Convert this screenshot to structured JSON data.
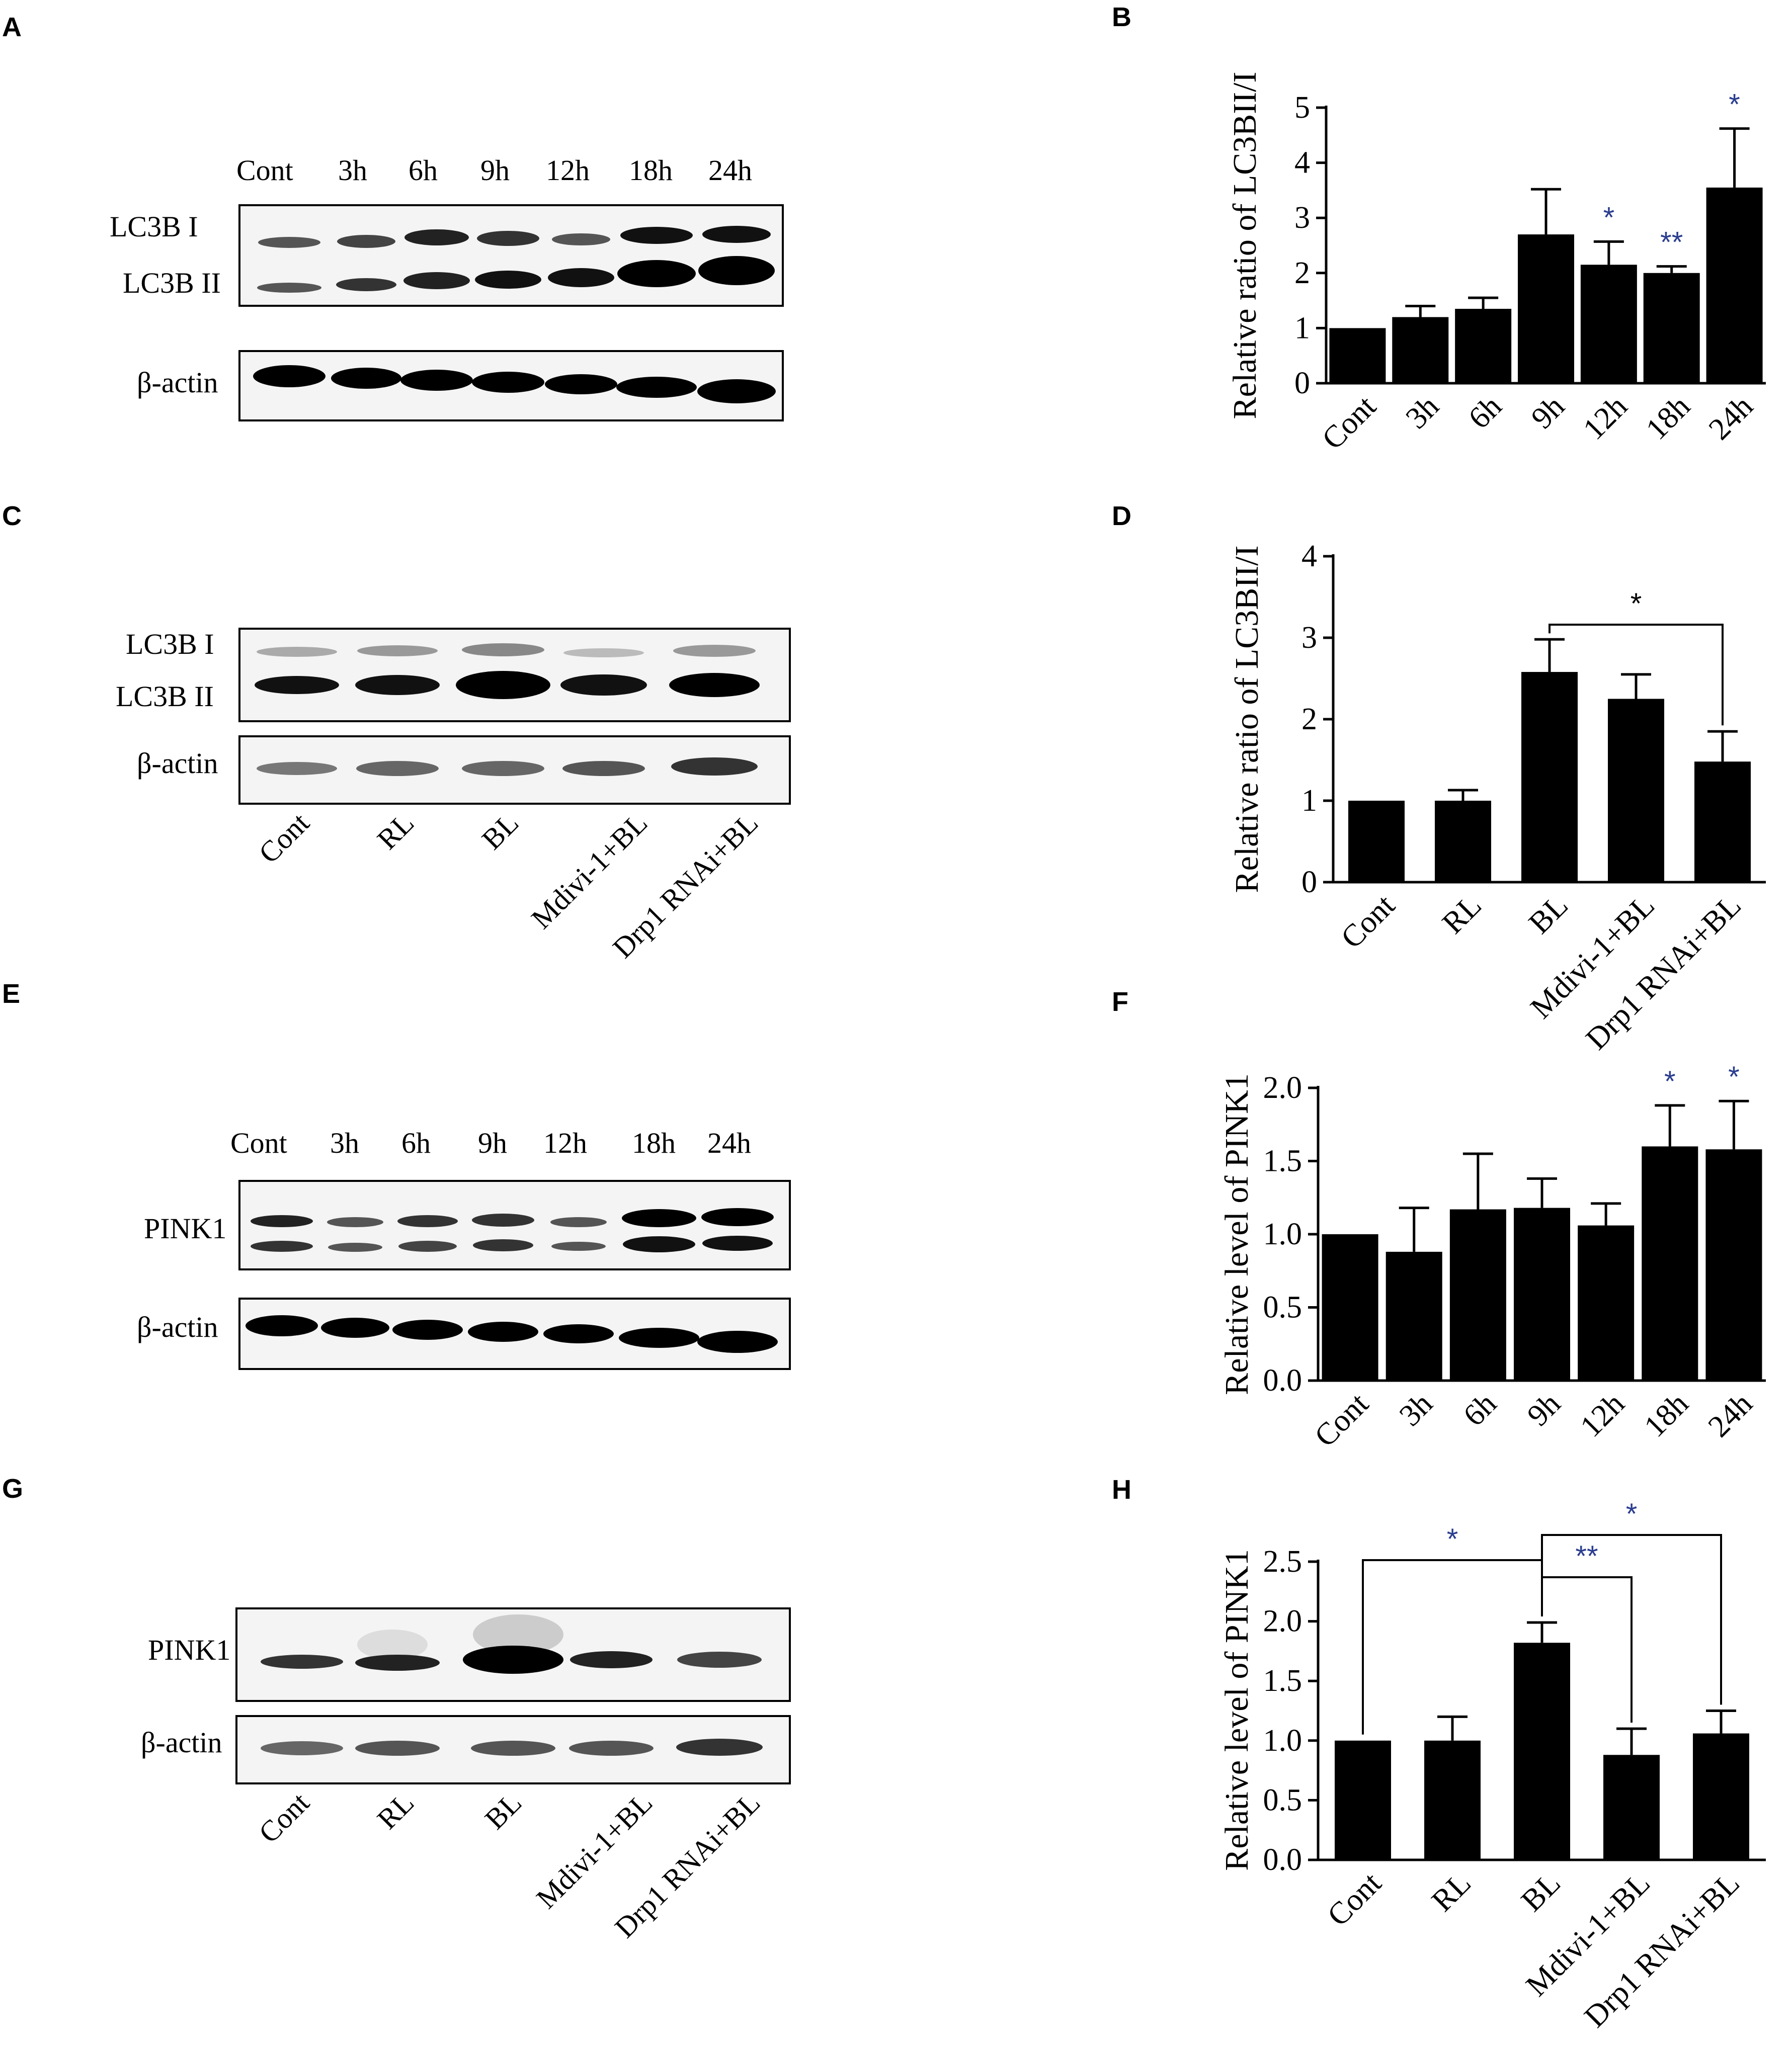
{
  "panels": {
    "A": {
      "letter": "A",
      "lanes": [
        "Cont",
        "3h",
        "6h",
        "9h",
        "12h",
        "18h",
        "24h"
      ],
      "rows": [
        "LC3B  I",
        "LC3B  II",
        "β-actin"
      ]
    },
    "C": {
      "letter": "C",
      "lanes": [
        "Cont",
        "RL",
        "BL",
        "Mdivi-1+BL",
        "Drp1 RNAi+BL"
      ],
      "rows": [
        "LC3B  I",
        "LC3B  II",
        "β-actin"
      ]
    },
    "E": {
      "letter": "E",
      "lanes": [
        "Cont",
        "3h",
        "6h",
        "9h",
        "12h",
        "18h",
        "24h"
      ],
      "rows": [
        "PINK1",
        "β-actin"
      ]
    },
    "G": {
      "letter": "G",
      "lanes": [
        "Cont",
        "RL",
        "BL",
        "Mdivi-1+BL",
        "Drp1 RNAi+BL"
      ],
      "rows": [
        "PINK1",
        "β-actin"
      ]
    }
  },
  "chart_data": [
    {
      "panel": "B",
      "type": "bar",
      "ylabel": "Relative ratio of LC3BII/I",
      "categories": [
        "Cont",
        "3h",
        "6h",
        "9h",
        "12h",
        "18h",
        "24h"
      ],
      "values": [
        1.0,
        1.2,
        1.35,
        2.7,
        2.15,
        2.0,
        3.55
      ],
      "errors": [
        0,
        0.2,
        0.2,
        0.82,
        0.42,
        0.12,
        1.07
      ],
      "ylim": [
        0,
        5
      ],
      "yticks": [
        "0",
        "1",
        "2",
        "3",
        "4",
        "5"
      ],
      "significance": [
        "",
        "",
        "",
        "",
        "*",
        "**",
        "*"
      ]
    },
    {
      "panel": "D",
      "type": "bar",
      "ylabel": "Relative ratio of LC3BII/I",
      "categories": [
        "Cont",
        "RL",
        "BL",
        "Mdivi-1+BL",
        "Drp1 RNAi+BL"
      ],
      "values": [
        1.0,
        1.0,
        2.58,
        2.25,
        1.48
      ],
      "errors": [
        0,
        0.13,
        0.4,
        0.3,
        0.37
      ],
      "ylim": [
        0,
        4
      ],
      "yticks": [
        "0",
        "1",
        "2",
        "3",
        "4"
      ],
      "brackets": [
        {
          "from": "BL",
          "to": "Drp1 RNAi+BL",
          "label": "*"
        }
      ]
    },
    {
      "panel": "F",
      "type": "bar",
      "ylabel": "Relative level of PINK1",
      "categories": [
        "Cont",
        "3h",
        "6h",
        "9h",
        "12h",
        "18h",
        "24h"
      ],
      "values": [
        1.0,
        0.88,
        1.17,
        1.18,
        1.06,
        1.6,
        1.58
      ],
      "errors": [
        0,
        0.3,
        0.38,
        0.2,
        0.15,
        0.28,
        0.33
      ],
      "ylim": [
        0,
        2.0
      ],
      "yticks": [
        "0.0",
        "0.5",
        "1.0",
        "1.5",
        "2.0"
      ],
      "significance": [
        "",
        "",
        "",
        "",
        "",
        "*",
        "*"
      ]
    },
    {
      "panel": "H",
      "type": "bar",
      "ylabel": "Relative level of PINK1",
      "categories": [
        "Cont",
        "RL",
        "BL",
        "Mdivi-1+BL",
        "Drp1 RNAi+BL"
      ],
      "values": [
        1.0,
        1.0,
        1.82,
        0.88,
        1.06
      ],
      "errors": [
        0,
        0.2,
        0.17,
        0.22,
        0.19
      ],
      "ylim": [
        0,
        2.5
      ],
      "yticks": [
        "0.0",
        "0.5",
        "1.0",
        "1.5",
        "2.0",
        "2.5"
      ],
      "brackets": [
        {
          "from": "Cont",
          "to": "BL",
          "label": "*"
        },
        {
          "from": "BL",
          "to": "Mdivi-1+BL",
          "label": "**"
        },
        {
          "from": "BL",
          "to": "Drp1 RNAi+BL",
          "label": "*"
        }
      ]
    }
  ]
}
